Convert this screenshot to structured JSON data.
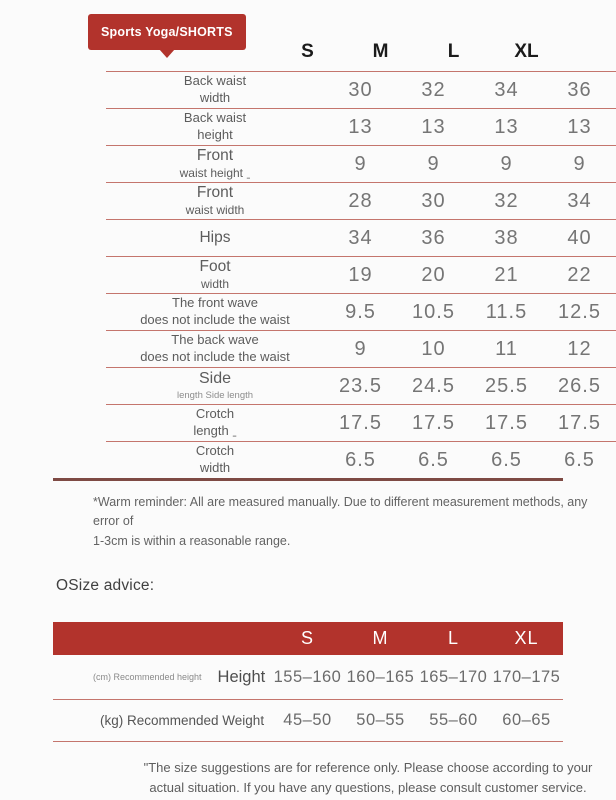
{
  "colors": {
    "red": "#b2332c",
    "line": "#c4756d",
    "line-dark": "#7e4a44",
    "text-dark": "#1b1b1b",
    "text-gray": "#5c5c5c",
    "value-gray": "#757575",
    "bg": "#fbfbfb"
  },
  "badge": {
    "label": "Sports Yoga/SHORTS"
  },
  "size_table": {
    "sizes": [
      "S",
      "M",
      "L",
      "XL"
    ],
    "rows": [
      {
        "variant": "eq",
        "main": "Back waist",
        "sub": "width",
        "values": [
          "30",
          "32",
          "34",
          "36"
        ]
      },
      {
        "variant": "eq",
        "main": "Back waist",
        "sub": "height",
        "values": [
          "13",
          "13",
          "13",
          "13"
        ]
      },
      {
        "variant": "bigsmall",
        "main": "Front",
        "sub": "waist height ˍ",
        "values": [
          "9",
          "9",
          "9",
          "9"
        ]
      },
      {
        "variant": "bigsmall",
        "main": "Front",
        "sub": "waist width",
        "values": [
          "28",
          "30",
          "32",
          "34"
        ]
      },
      {
        "variant": "single",
        "main": "Hips",
        "sub": "",
        "values": [
          "34",
          "36",
          "38",
          "40"
        ]
      },
      {
        "variant": "bigsmall",
        "main": "Foot",
        "sub": "width",
        "values": [
          "19",
          "20",
          "21",
          "22"
        ]
      },
      {
        "variant": "eq",
        "main": "The front wave",
        "sub": "does not include the waist",
        "values": [
          "9.5",
          "10.5",
          "11.5",
          "12.5"
        ]
      },
      {
        "variant": "eq",
        "main": "The back wave",
        "sub": "does not include the waist",
        "values": [
          "9",
          "10",
          "11",
          "12"
        ]
      },
      {
        "variant": "bigtiny",
        "main": "Side",
        "sub": "length Side length",
        "values": [
          "23.5",
          "24.5",
          "25.5",
          "26.5"
        ]
      },
      {
        "variant": "eq",
        "main": "Crotch",
        "sub": "length ˍ",
        "values": [
          "17.5",
          "17.5",
          "17.5",
          "17.5"
        ]
      },
      {
        "variant": "eq",
        "main": "Crotch",
        "sub": "width",
        "values": [
          "6.5",
          "6.5",
          "6.5",
          "6.5"
        ]
      }
    ],
    "note_line1": "*Warm reminder: All are measured manually. Due to different measurement methods, any error of",
    "note_line2": "1-3cm is within a reasonable range."
  },
  "advice": {
    "heading": "OSize advice:",
    "sizes": [
      "S",
      "M",
      "L",
      "XL"
    ],
    "rows": [
      {
        "label_small": "(cm) Recommended height",
        "label_main": "Height",
        "values": [
          "155–160",
          "160–165",
          "165–170",
          "170–175"
        ]
      },
      {
        "label_small": "",
        "label_main": "(kg) Recommended Weight",
        "values": [
          "45–50",
          "50–55",
          "55–60",
          "60–65"
        ]
      }
    ],
    "note_line1": "\"The size suggestions are for reference only. Please choose according to your",
    "note_line2": "actual situation. If you have any questions, please consult customer service."
  }
}
